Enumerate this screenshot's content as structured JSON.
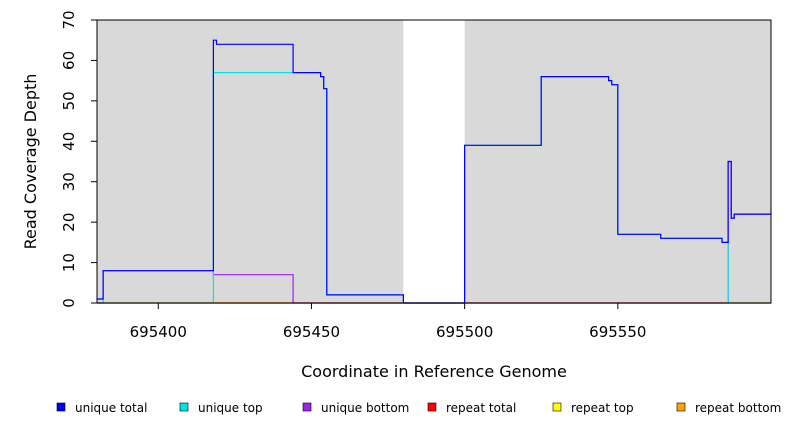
{
  "chart_data": {
    "type": "line",
    "title": "",
    "xlabel": "Coordinate in Reference Genome",
    "ylabel": "Read Coverage Depth",
    "xlim": [
      695380,
      695600
    ],
    "ylim": [
      0,
      70
    ],
    "x_ticks": [
      695400,
      695450,
      695500,
      695550
    ],
    "y_ticks": [
      0,
      10,
      20,
      30,
      40,
      50,
      60,
      70
    ],
    "grid": false,
    "background_color": "#d9d9d9",
    "legend_position": "bottom",
    "shaded_regions": [
      {
        "from": 695380,
        "to": 695480
      },
      {
        "from": 695500,
        "to": 695600
      }
    ],
    "series": [
      {
        "name": "unique total",
        "color": "#0000ff",
        "points": [
          [
            695380,
            1
          ],
          [
            695382,
            1
          ],
          [
            695382,
            8
          ],
          [
            695418,
            8
          ],
          [
            695418,
            65
          ],
          [
            695419,
            65
          ],
          [
            695419,
            64
          ],
          [
            695444,
            64
          ],
          [
            695444,
            57
          ],
          [
            695453,
            57
          ],
          [
            695453,
            56
          ],
          [
            695454,
            56
          ],
          [
            695454,
            53
          ],
          [
            695455,
            53
          ],
          [
            695455,
            2
          ],
          [
            695480,
            2
          ],
          [
            695480,
            0
          ],
          [
            695500,
            0
          ],
          [
            695500,
            39
          ],
          [
            695525,
            39
          ],
          [
            695525,
            56
          ],
          [
            695547,
            56
          ],
          [
            695547,
            55
          ],
          [
            695548,
            55
          ],
          [
            695548,
            54
          ],
          [
            695550,
            54
          ],
          [
            695550,
            17
          ],
          [
            695564,
            17
          ],
          [
            695564,
            16
          ],
          [
            695584,
            16
          ],
          [
            695584,
            15
          ],
          [
            695586,
            15
          ],
          [
            695586,
            35
          ],
          [
            695587,
            35
          ],
          [
            695587,
            21
          ],
          [
            695588,
            21
          ],
          [
            695588,
            22
          ],
          [
            695600,
            22
          ]
        ]
      },
      {
        "name": "unique top",
        "color": "#00e5e5",
        "points": [
          [
            695380,
            1
          ],
          [
            695382,
            1
          ],
          [
            695382,
            0
          ],
          [
            695418,
            0
          ],
          [
            695418,
            57
          ],
          [
            695444,
            57
          ],
          [
            695453,
            57
          ],
          [
            695453,
            56
          ],
          [
            695454,
            56
          ],
          [
            695454,
            53
          ],
          [
            695455,
            53
          ],
          [
            695455,
            2
          ],
          [
            695480,
            2
          ],
          [
            695480,
            0
          ],
          [
            695500,
            0
          ],
          [
            695500,
            39
          ],
          [
            695525,
            39
          ],
          [
            695525,
            56
          ],
          [
            695547,
            56
          ],
          [
            695547,
            55
          ],
          [
            695548,
            55
          ],
          [
            695548,
            54
          ],
          [
            695550,
            54
          ],
          [
            695550,
            17
          ],
          [
            695564,
            17
          ],
          [
            695564,
            16
          ],
          [
            695584,
            16
          ],
          [
            695584,
            15
          ],
          [
            695586,
            15
          ],
          [
            695586,
            0
          ],
          [
            695600,
            0
          ]
        ]
      },
      {
        "name": "unique bottom",
        "color": "#a020f0",
        "points": [
          [
            695380,
            0
          ],
          [
            695382,
            0
          ],
          [
            695382,
            8
          ],
          [
            695418,
            8
          ],
          [
            695418,
            7
          ],
          [
            695444,
            7
          ],
          [
            695444,
            0
          ],
          [
            695586,
            0
          ],
          [
            695586,
            35
          ],
          [
            695587,
            35
          ],
          [
            695587,
            21
          ],
          [
            695588,
            21
          ],
          [
            695588,
            22
          ],
          [
            695600,
            22
          ]
        ]
      },
      {
        "name": "repeat total",
        "color": "#ff0000",
        "points": [
          [
            695380,
            0
          ],
          [
            695600,
            0
          ]
        ]
      },
      {
        "name": "repeat top",
        "color": "#ffff00",
        "points": [
          [
            695380,
            0
          ],
          [
            695600,
            0
          ]
        ]
      },
      {
        "name": "repeat bottom",
        "color": "#ffa500",
        "points": [
          [
            695418,
            0
          ],
          [
            695444,
            0
          ]
        ]
      }
    ]
  }
}
